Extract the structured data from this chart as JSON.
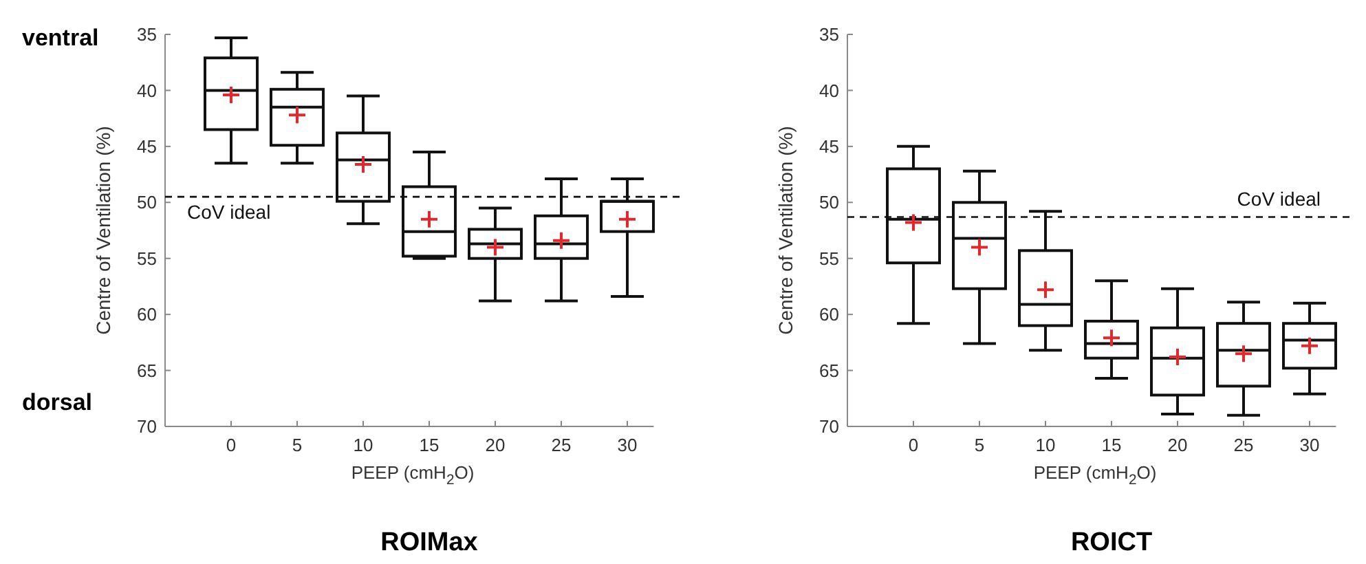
{
  "chart_data": [
    {
      "type": "box",
      "title": "ROIMax",
      "xlabel": "PEEP (cmH$_{2}$O)",
      "ylabel": "Centre of Ventilation (%)",
      "categories": [
        "0",
        "5",
        "10",
        "15",
        "20",
        "25",
        "30"
      ],
      "ylim": [
        70,
        35
      ],
      "yticks": [
        35,
        40,
        45,
        50,
        55,
        60,
        65,
        70
      ],
      "grid": false,
      "annotations": [
        "ventral",
        "dorsal"
      ],
      "ref_lines": [
        {
          "axis": "y",
          "value": 49.5,
          "label": "CoV ideal",
          "line_style": "dashed"
        }
      ],
      "boxes": [
        {
          "low": 35.3,
          "q1": 37.1,
          "median": 40.0,
          "q3": 43.5,
          "high": 46.5,
          "mean": 40.4
        },
        {
          "low": 38.4,
          "q1": 39.9,
          "median": 41.5,
          "q3": 44.9,
          "high": 46.5,
          "mean": 42.2
        },
        {
          "low": 40.5,
          "q1": 43.8,
          "median": 46.2,
          "q3": 49.9,
          "high": 51.9,
          "mean": 46.6
        },
        {
          "low": 45.5,
          "q1": 48.6,
          "median": 52.6,
          "q3": 54.8,
          "high": 55.0,
          "mean": 51.5
        },
        {
          "low": 50.5,
          "q1": 52.4,
          "median": 53.7,
          "q3": 55.0,
          "high": 58.8,
          "mean": 54.0
        },
        {
          "low": 47.9,
          "q1": 51.2,
          "median": 53.7,
          "q3": 55.0,
          "high": 58.8,
          "mean": 53.4
        },
        {
          "low": 47.9,
          "q1": 49.9,
          "median": 49.9,
          "q3": 52.6,
          "high": 58.4,
          "mean": 51.5
        }
      ]
    },
    {
      "type": "box",
      "title": "ROICT",
      "xlabel": "PEEP (cmH$_{2}$O)",
      "ylabel": "Centre of Ventilation (%)",
      "categories": [
        "0",
        "5",
        "10",
        "15",
        "20",
        "25",
        "30"
      ],
      "ylim": [
        70,
        35
      ],
      "yticks": [
        35,
        40,
        45,
        50,
        55,
        60,
        65,
        70
      ],
      "grid": false,
      "ref_lines": [
        {
          "axis": "y",
          "value": 51.3,
          "label": "CoV ideal",
          "line_style": "dashed"
        }
      ],
      "boxes": [
        {
          "low": 45.0,
          "q1": 47.0,
          "median": 51.5,
          "q3": 55.4,
          "high": 60.8,
          "mean": 51.8
        },
        {
          "low": 47.2,
          "q1": 50.0,
          "median": 53.2,
          "q3": 57.7,
          "high": 62.6,
          "mean": 54.0
        },
        {
          "low": 50.8,
          "q1": 54.3,
          "median": 59.1,
          "q3": 61.0,
          "high": 63.2,
          "mean": 57.8
        },
        {
          "low": 57.0,
          "q1": 60.6,
          "median": 62.6,
          "q3": 63.9,
          "high": 65.7,
          "mean": 62.1
        },
        {
          "low": 57.7,
          "q1": 61.2,
          "median": 63.9,
          "q3": 67.2,
          "high": 68.9,
          "mean": 63.8
        },
        {
          "low": 58.9,
          "q1": 60.8,
          "median": 63.2,
          "q3": 66.4,
          "high": 69.0,
          "mean": 63.5
        },
        {
          "low": 59.0,
          "q1": 60.8,
          "median": 62.3,
          "q3": 64.8,
          "high": 67.1,
          "mean": 62.8
        }
      ]
    }
  ]
}
